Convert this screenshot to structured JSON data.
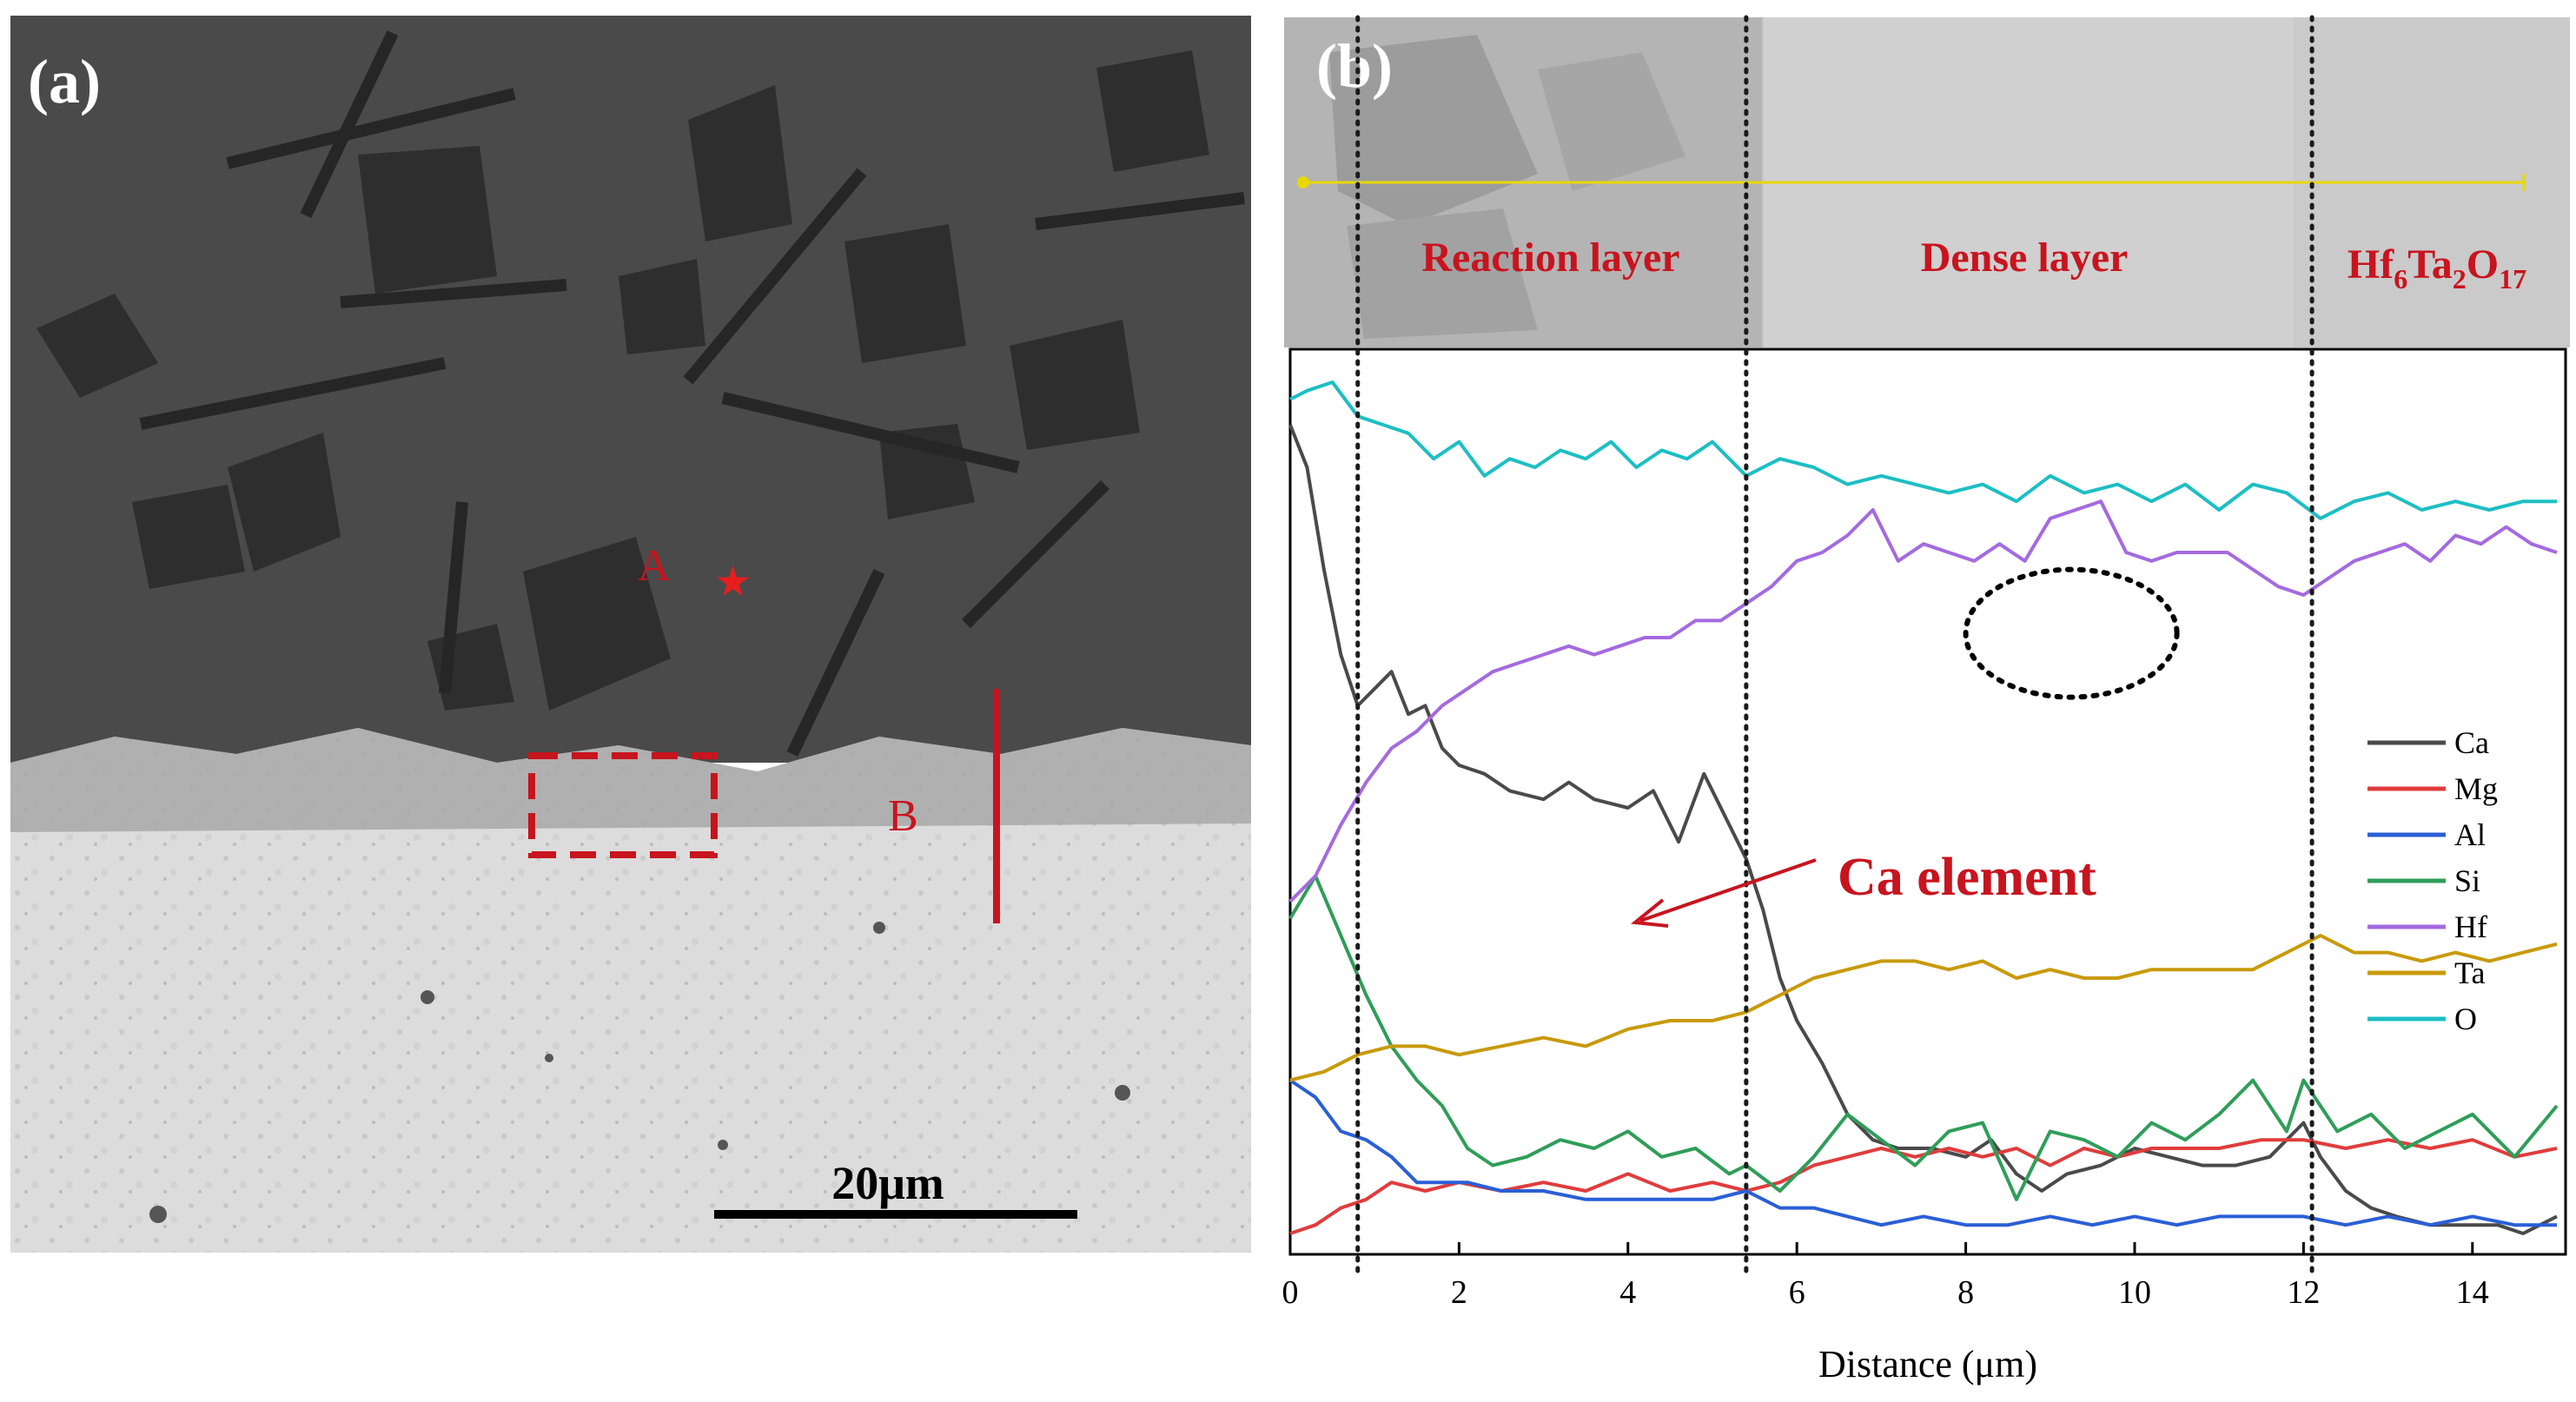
{
  "panel_a": {
    "label": "(a)",
    "point_a": "A",
    "point_b": "B",
    "scale_bar": "20μm"
  },
  "panel_b": {
    "label": "(b)",
    "layers": {
      "reaction": "Reaction layer",
      "dense": "Dense layer"
    },
    "phase": {
      "base": "Hf",
      "sub1": "6",
      "mid": "Ta",
      "sub2": "2",
      "end": "O",
      "sub3": "17"
    },
    "annotation": "Ca element"
  },
  "chart_data": {
    "type": "line",
    "xlabel": "Distance (μm)",
    "ylabel": "",
    "xlim": [
      0,
      15
    ],
    "ylim": [
      0,
      100
    ],
    "x_ticks": [
      0,
      2,
      4,
      6,
      8,
      10,
      12,
      14
    ],
    "boundaries_um": [
      0.8,
      5.4,
      12.1
    ],
    "highlight_region": {
      "x": [
        8.0,
        10.5
      ],
      "y": [
        63,
        78
      ],
      "shape": "ellipse",
      "style": "dotted"
    },
    "series": [
      {
        "name": "Ca",
        "color": "#4a4a4a",
        "x": [
          0,
          0.2,
          0.4,
          0.6,
          0.8,
          1.0,
          1.2,
          1.4,
          1.6,
          1.8,
          2.0,
          2.3,
          2.6,
          3.0,
          3.3,
          3.6,
          4.0,
          4.3,
          4.6,
          4.9,
          5.2,
          5.4,
          5.6,
          5.8,
          6.0,
          6.3,
          6.6,
          6.9,
          7.2,
          7.6,
          8.0,
          8.3,
          8.6,
          8.9,
          9.2,
          9.6,
          10.0,
          10.4,
          10.8,
          11.2,
          11.6,
          12.0,
          12.2,
          12.5,
          12.8,
          13.1,
          13.5,
          13.9,
          14.3,
          14.6,
          15.0
        ],
        "values": [
          95,
          90,
          78,
          68,
          62,
          64,
          66,
          61,
          62,
          57,
          55,
          54,
          52,
          51,
          53,
          51,
          50,
          52,
          46,
          54,
          48,
          44,
          38,
          30,
          25,
          20,
          14,
          11,
          10,
          10,
          9,
          11,
          7,
          5,
          7,
          8,
          10,
          9,
          8,
          8,
          9,
          13,
          9,
          5,
          3,
          2,
          1,
          1,
          1,
          0,
          2
        ]
      },
      {
        "name": "Mg",
        "color": "#e03c3c",
        "x": [
          0,
          0.3,
          0.6,
          0.9,
          1.2,
          1.6,
          2.0,
          2.5,
          3.0,
          3.5,
          4.0,
          4.5,
          5.0,
          5.4,
          5.8,
          6.2,
          6.6,
          7.0,
          7.4,
          7.8,
          8.2,
          8.6,
          9.0,
          9.4,
          9.8,
          10.2,
          10.6,
          11.0,
          11.5,
          12.0,
          12.5,
          13.0,
          13.5,
          14.0,
          14.5,
          15.0
        ],
        "values": [
          0,
          1,
          3,
          4,
          6,
          5,
          6,
          5,
          6,
          5,
          7,
          5,
          6,
          5,
          6,
          8,
          9,
          10,
          9,
          10,
          9,
          10,
          8,
          10,
          9,
          10,
          10,
          10,
          11,
          11,
          10,
          11,
          10,
          11,
          9,
          10
        ]
      },
      {
        "name": "Al",
        "color": "#2a5fd6",
        "x": [
          0,
          0.3,
          0.6,
          0.9,
          1.2,
          1.5,
          1.8,
          2.1,
          2.5,
          3.0,
          3.5,
          4.0,
          4.5,
          5.0,
          5.4,
          5.8,
          6.2,
          6.6,
          7.0,
          7.5,
          8.0,
          8.5,
          9.0,
          9.5,
          10.0,
          10.5,
          11.0,
          11.5,
          12.0,
          12.5,
          13.0,
          13.5,
          14.0,
          14.5,
          15.0
        ],
        "values": [
          18,
          16,
          12,
          11,
          9,
          6,
          6,
          6,
          5,
          5,
          4,
          4,
          4,
          4,
          5,
          3,
          3,
          2,
          1,
          2,
          1,
          1,
          2,
          1,
          2,
          1,
          2,
          2,
          2,
          1,
          2,
          1,
          2,
          1,
          1
        ]
      },
      {
        "name": "Si",
        "color": "#2e9e58",
        "x": [
          0,
          0.3,
          0.6,
          0.9,
          1.2,
          1.5,
          1.8,
          2.1,
          2.4,
          2.8,
          3.2,
          3.6,
          4.0,
          4.4,
          4.8,
          5.2,
          5.4,
          5.8,
          6.2,
          6.6,
          7.0,
          7.4,
          7.8,
          8.2,
          8.6,
          9.0,
          9.4,
          9.8,
          10.2,
          10.6,
          11.0,
          11.4,
          11.8,
          12.0,
          12.4,
          12.8,
          13.2,
          13.6,
          14.0,
          14.5,
          15.0
        ],
        "values": [
          37,
          42,
          35,
          28,
          22,
          18,
          15,
          10,
          8,
          9,
          11,
          10,
          12,
          9,
          10,
          7,
          8,
          5,
          9,
          14,
          11,
          8,
          12,
          13,
          4,
          12,
          11,
          9,
          13,
          11,
          14,
          18,
          12,
          18,
          12,
          14,
          10,
          12,
          14,
          9,
          15
        ]
      },
      {
        "name": "Hf",
        "color": "#a46ae0",
        "x": [
          0,
          0.3,
          0.6,
          0.9,
          1.2,
          1.5,
          1.8,
          2.1,
          2.4,
          2.7,
          3.0,
          3.3,
          3.6,
          3.9,
          4.2,
          4.5,
          4.8,
          5.1,
          5.4,
          5.7,
          6.0,
          6.3,
          6.6,
          6.9,
          7.2,
          7.5,
          7.8,
          8.1,
          8.4,
          8.7,
          9.0,
          9.3,
          9.6,
          9.9,
          10.2,
          10.5,
          10.8,
          11.1,
          11.4,
          11.7,
          12.0,
          12.3,
          12.6,
          12.9,
          13.2,
          13.5,
          13.8,
          14.1,
          14.4,
          14.7,
          15.0
        ],
        "values": [
          39,
          42,
          48,
          53,
          57,
          59,
          62,
          64,
          66,
          67,
          68,
          69,
          68,
          69,
          70,
          70,
          72,
          72,
          74,
          76,
          79,
          80,
          82,
          85,
          79,
          81,
          80,
          79,
          81,
          79,
          84,
          85,
          86,
          80,
          79,
          80,
          80,
          80,
          78,
          76,
          75,
          77,
          79,
          80,
          81,
          79,
          82,
          81,
          83,
          81,
          80
        ]
      },
      {
        "name": "Ta",
        "color": "#c89a0a",
        "x": [
          0,
          0.4,
          0.8,
          1.2,
          1.6,
          2.0,
          2.5,
          3.0,
          3.5,
          4.0,
          4.5,
          5.0,
          5.4,
          5.8,
          6.2,
          6.6,
          7.0,
          7.4,
          7.8,
          8.2,
          8.6,
          9.0,
          9.4,
          9.8,
          10.2,
          10.6,
          11.0,
          11.4,
          11.8,
          12.2,
          12.6,
          13.0,
          13.4,
          13.8,
          14.2,
          14.6,
          15.0
        ],
        "values": [
          18,
          19,
          21,
          22,
          22,
          21,
          22,
          23,
          22,
          24,
          25,
          25,
          26,
          28,
          30,
          31,
          32,
          32,
          31,
          32,
          30,
          31,
          30,
          30,
          31,
          31,
          31,
          31,
          33,
          35,
          33,
          33,
          32,
          33,
          32,
          33,
          34
        ]
      },
      {
        "name": "O",
        "color": "#1dbec4",
        "x": [
          0,
          0.2,
          0.5,
          0.8,
          1.1,
          1.4,
          1.7,
          2.0,
          2.3,
          2.6,
          2.9,
          3.2,
          3.5,
          3.8,
          4.1,
          4.4,
          4.7,
          5.0,
          5.4,
          5.8,
          6.2,
          6.6,
          7.0,
          7.4,
          7.8,
          8.2,
          8.6,
          9.0,
          9.4,
          9.8,
          10.2,
          10.6,
          11.0,
          11.4,
          11.8,
          12.2,
          12.6,
          13.0,
          13.4,
          13.8,
          14.2,
          14.6,
          15.0
        ],
        "values": [
          98,
          99,
          100,
          96,
          95,
          94,
          91,
          93,
          89,
          91,
          90,
          92,
          91,
          93,
          90,
          92,
          91,
          93,
          89,
          91,
          90,
          88,
          89,
          88,
          87,
          88,
          86,
          89,
          87,
          88,
          86,
          88,
          85,
          88,
          87,
          84,
          86,
          87,
          85,
          86,
          85,
          86,
          86
        ]
      }
    ]
  }
}
